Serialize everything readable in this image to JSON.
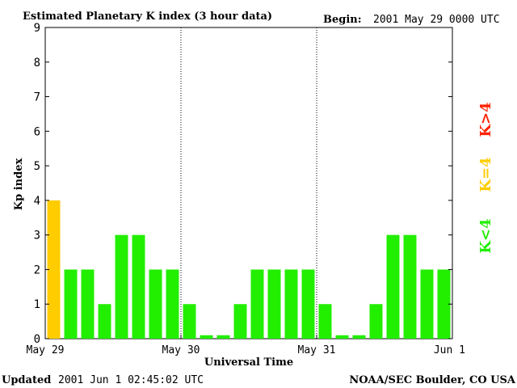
{
  "header": {
    "title": "Estimated Planetary K index (3 hour data)",
    "begin_label": "Begin:",
    "begin_value": "2001 May 29 0000 UTC"
  },
  "footer": {
    "updated_label": "Updated",
    "updated_value": "2001 Jun  1 02:45:02 UTC",
    "source": "NOAA/SEC Boulder, CO USA"
  },
  "legend": {
    "above": "K>4",
    "equal": "K=4",
    "below": "K<4"
  },
  "colors": {
    "below": "#22ee00",
    "equal": "#ffcc00",
    "above": "#ff2200",
    "axis": "#000000",
    "divider": "#000000"
  },
  "chart_data": {
    "type": "bar",
    "title": "Estimated Planetary K index (3 hour data)",
    "xlabel": "Universal Time",
    "ylabel": "Kp index",
    "ylim": [
      0,
      9
    ],
    "yticks": [
      "0",
      "1",
      "2",
      "3",
      "4",
      "5",
      "6",
      "7",
      "8",
      "9"
    ],
    "xticks": [
      "May 29",
      "May 30",
      "May 31",
      "Jun 1"
    ],
    "categories": [
      "May 29 00",
      "May 29 03",
      "May 29 06",
      "May 29 09",
      "May 29 12",
      "May 29 15",
      "May 29 18",
      "May 29 21",
      "May 30 00",
      "May 30 03",
      "May 30 06",
      "May 30 09",
      "May 30 12",
      "May 30 15",
      "May 30 18",
      "May 30 21",
      "May 31 00",
      "May 31 03",
      "May 31 06",
      "May 31 09",
      "May 31 12",
      "May 31 15",
      "May 31 18",
      "May 31 21"
    ],
    "values": [
      4,
      2,
      2,
      1,
      3,
      3,
      2,
      2,
      1,
      0.1,
      0.1,
      1,
      2,
      2,
      2,
      2,
      1,
      0.1,
      0.1,
      1,
      3,
      3,
      2,
      2
    ],
    "legend_position": "right",
    "grid": false
  }
}
